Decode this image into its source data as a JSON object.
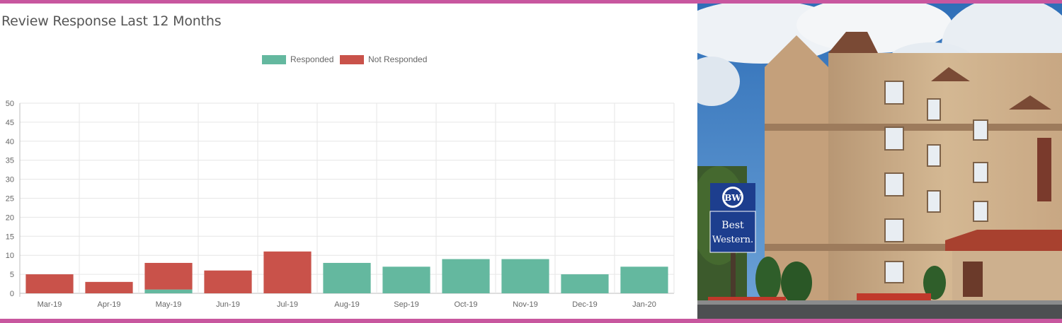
{
  "chart_data": {
    "type": "bar",
    "stacked": true,
    "title": "Review Response Last 12 Months",
    "categories": [
      "Mar-19",
      "Apr-19",
      "May-19",
      "Jun-19",
      "Jul-19",
      "Aug-19",
      "Sep-19",
      "Oct-19",
      "Nov-19",
      "Dec-19",
      "Jan-20"
    ],
    "series": [
      {
        "name": "Responded",
        "color": "#64b89f",
        "values": [
          0,
          0,
          1,
          0,
          0,
          8,
          7,
          9,
          9,
          5,
          7
        ]
      },
      {
        "name": "Not Responded",
        "color": "#c9524a",
        "values": [
          5,
          3,
          7,
          6,
          11,
          0,
          0,
          0,
          0,
          0,
          0
        ]
      }
    ],
    "ylim": [
      0,
      50
    ],
    "yticks": [
      "0",
      "5",
      "10",
      "15",
      "20",
      "25",
      "30",
      "35",
      "40",
      "45",
      "50"
    ],
    "grid": true,
    "legend_position": "top-center"
  },
  "photo": {
    "sign_logo": "BW",
    "sign_text_line1": "Best",
    "sign_text_line2": "Western."
  }
}
